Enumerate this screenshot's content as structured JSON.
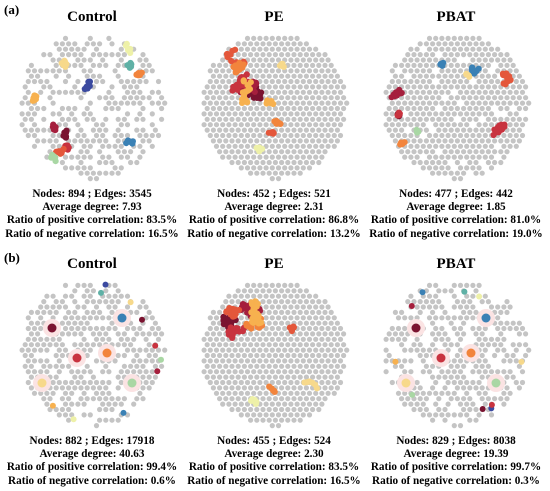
{
  "panels": [
    {
      "label": "(a)",
      "networks": [
        {
          "title": "Control",
          "nodes_edges": "Nodes: 894 ; Edges: 3545",
          "avg_degree": "Average degree: 7.93",
          "pos_ratio": "Ratio of positive correlation: 83.5%",
          "neg_ratio": "Ratio of negative correlation: 16.5%",
          "seed": 11,
          "style": "scattered-modules"
        },
        {
          "title": "PE",
          "nodes_edges": "Nodes: 452 ; Edges: 521",
          "avg_degree": "Average degree: 2.31",
          "pos_ratio": "Ratio of positive correlation: 86.8%",
          "neg_ratio": "Ratio of negative correlation: 13.2%",
          "seed": 23,
          "style": "dense-cluster-left"
        },
        {
          "title": "PBAT",
          "nodes_edges": "Nodes: 477 ; Edges: 442",
          "avg_degree": "Average degree: 1.85",
          "pos_ratio": "Ratio of positive correlation: 81.0%",
          "neg_ratio": "Ratio of negative correlation: 19.0%",
          "seed": 37,
          "style": "clusters-sides"
        }
      ]
    },
    {
      "label": "(b)",
      "networks": [
        {
          "title": "Control",
          "nodes_edges": "Nodes: 882 ; Edges: 17918",
          "avg_degree": "Average degree: 40.63",
          "pos_ratio": "Ratio of positive correlation: 99.4%",
          "neg_ratio": "Ratio of negative correlation: 0.6%",
          "seed": 41,
          "style": "hubs"
        },
        {
          "title": "PE",
          "nodes_edges": "Nodes: 455 ; Edges: 524",
          "avg_degree": "Average degree: 2.30",
          "pos_ratio": "Ratio of positive correlation: 83.5%",
          "neg_ratio": "Ratio of negative correlation: 16.5%",
          "seed": 53,
          "style": "dense-cluster-left"
        },
        {
          "title": "PBAT",
          "nodes_edges": "Nodes: 829 ; Edges: 8038",
          "avg_degree": "Average degree: 19.39",
          "pos_ratio": "Ratio of positive correlation: 99.7%",
          "neg_ratio": "Ratio of negative correlation: 0.3%",
          "seed": 67,
          "style": "hubs-sparse"
        }
      ]
    }
  ],
  "colors": {
    "node_gray": "#c4c4c4",
    "module_palette": [
      "#7a1330",
      "#a51f3d",
      "#c8333f",
      "#e4573b",
      "#f2843c",
      "#f7b14f",
      "#f7d98b",
      "#eef1a8",
      "#a9d7a4",
      "#5fb1a6",
      "#3a81b5",
      "#3b4aa0"
    ]
  }
}
